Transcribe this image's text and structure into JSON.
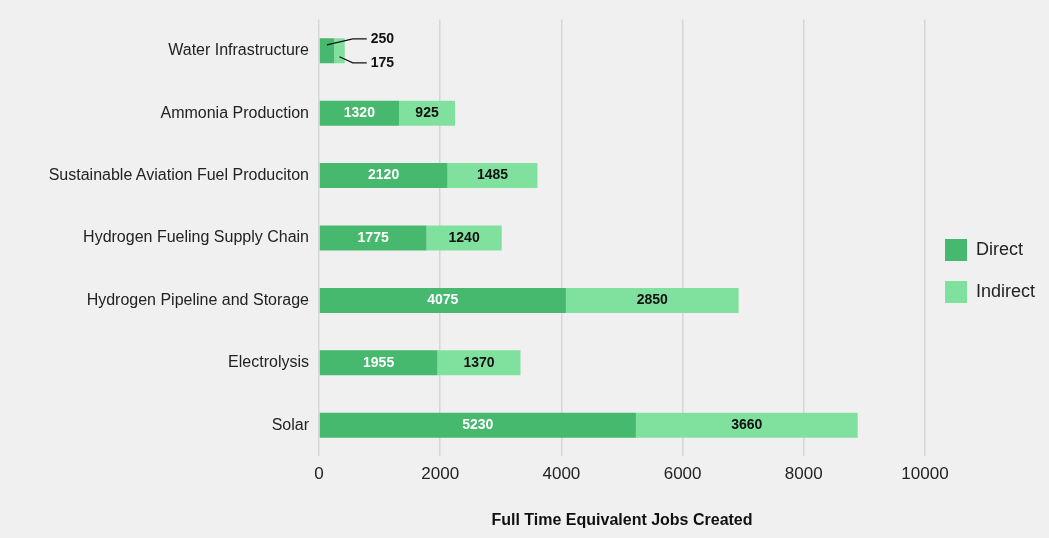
{
  "chart_data": {
    "type": "bar",
    "orientation": "horizontal",
    "stacked": true,
    "categories": [
      "Water Infrastructure",
      "Ammonia Production",
      "Sustainable Aviation Fuel Produciton",
      "Hydrogen Fueling Supply Chain",
      "Hydrogen Pipeline and Storage",
      "Electrolysis",
      "Solar"
    ],
    "series": [
      {
        "name": "Direct",
        "color": "#46b96e",
        "values": [
          250,
          1320,
          2120,
          1775,
          4075,
          1955,
          5230
        ]
      },
      {
        "name": "Indirect",
        "color": "#80e19f",
        "values": [
          175,
          925,
          1485,
          1240,
          2850,
          1370,
          3660
        ]
      }
    ],
    "xlabel": "Full Time Equivalent Jobs Created",
    "xlim": [
      0,
      10000
    ],
    "xticks": [
      0,
      2000,
      4000,
      6000,
      8000,
      10000
    ],
    "grid": "x",
    "legend": "right",
    "data_labels": true
  }
}
